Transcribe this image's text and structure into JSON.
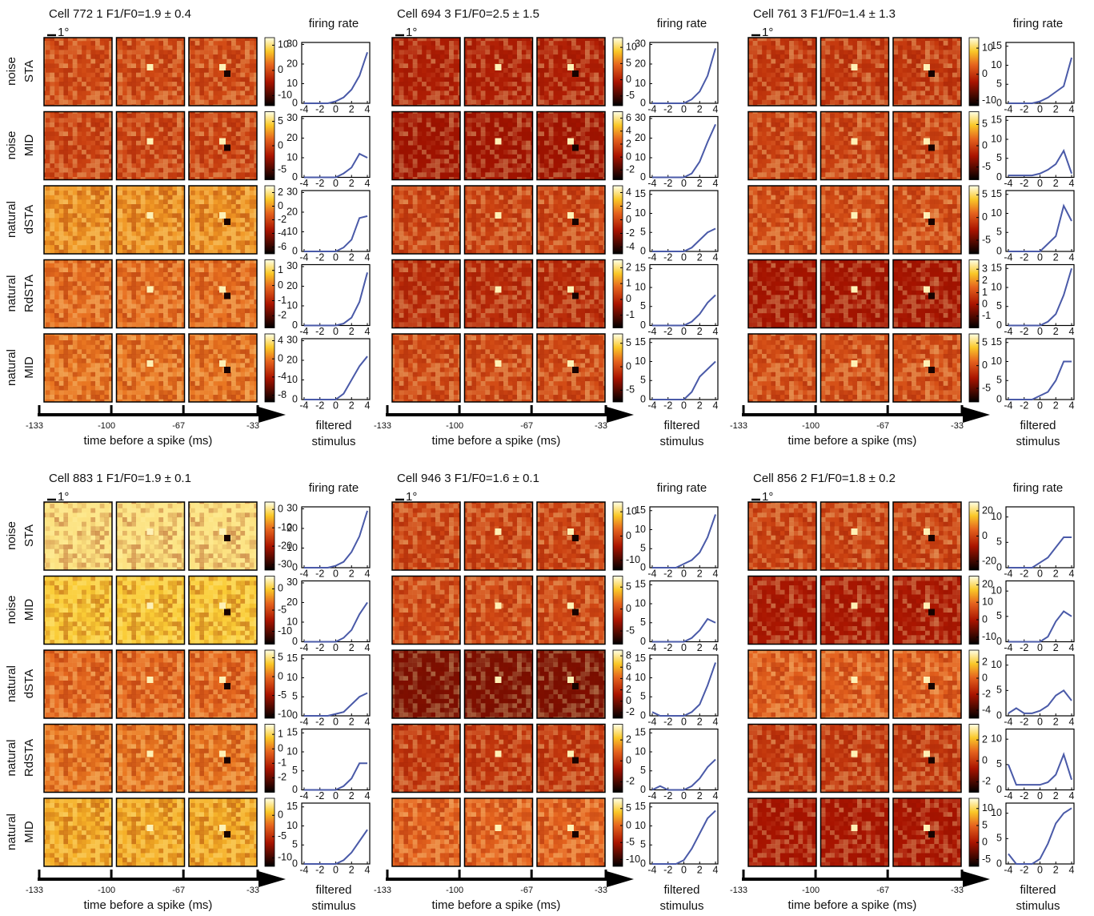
{
  "scale_label": "1°",
  "row_labels": [
    [
      "noise",
      "STA"
    ],
    [
      "noise",
      "MID"
    ],
    [
      "natural",
      "dSTA"
    ],
    [
      "natural",
      "RdSTA"
    ],
    [
      "natural",
      "MID"
    ]
  ],
  "rate_label": "firing rate",
  "stimulus_label": [
    "filtered",
    "stimulus"
  ],
  "time_axis": {
    "label": "time before a spike (ms)",
    "lim": [
      -133,
      -33
    ],
    "ticks": [
      -133,
      -100,
      -67,
      -33
    ]
  },
  "chart_data": [
    {
      "type": "line",
      "title": "Cell 772 1 F1/F0=1.9 ± 0.4",
      "color": "#4a5aa8",
      "x": [
        -4,
        -3,
        -2,
        -1,
        0,
        1,
        2,
        3,
        4
      ],
      "xlim": [
        -4.3,
        4.3
      ],
      "xticks": [
        -4,
        -2,
        0,
        2,
        4
      ],
      "rows": [
        {
          "ylim": [
            0,
            31
          ],
          "yticks": [
            0,
            10,
            20,
            30
          ],
          "values": [
            0,
            0,
            0,
            0,
            1,
            3,
            7,
            14,
            26
          ],
          "colorbar": {
            "lim": [
              -14,
              13
            ],
            "ticks": [
              10,
              0,
              -10
            ]
          }
        },
        {
          "ylim": [
            0,
            31
          ],
          "yticks": [
            0,
            10,
            20,
            30
          ],
          "values": [
            0,
            0,
            0,
            0,
            0,
            2,
            5,
            12,
            10
          ],
          "colorbar": {
            "lim": [
              -7,
              7
            ],
            "ticks": [
              5,
              0,
              -5
            ]
          }
        },
        {
          "ylim": [
            0,
            31
          ],
          "yticks": [
            0,
            10,
            20,
            30
          ],
          "values": [
            0,
            0,
            0,
            0,
            0,
            2,
            6,
            17,
            18
          ],
          "colorbar": {
            "lim": [
              -7,
              3
            ],
            "ticks": [
              2,
              0,
              -2,
              -4,
              -6
            ]
          }
        },
        {
          "ylim": [
            0,
            31
          ],
          "yticks": [
            0,
            10,
            20,
            30
          ],
          "values": [
            0,
            0,
            0,
            0,
            0,
            1,
            4,
            12,
            27
          ],
          "colorbar": {
            "lim": [
              -2.8,
              1.7
            ],
            "ticks": [
              1,
              0,
              -1,
              -2
            ]
          }
        },
        {
          "ylim": [
            0,
            31
          ],
          "yticks": [
            0,
            10,
            20,
            30
          ],
          "values": [
            0,
            0,
            0,
            0,
            0,
            3,
            10,
            17,
            22
          ],
          "colorbar": {
            "lim": [
              -9.5,
              5.5
            ],
            "ticks": [
              4,
              0,
              -4,
              -8
            ]
          }
        }
      ]
    },
    {
      "type": "line",
      "title": "Cell 694 3 F1/F0=2.5 ± 1.5",
      "color": "#4a5aa8",
      "x": [
        -4,
        -3,
        -2,
        -1,
        0,
        1,
        2,
        3,
        4
      ],
      "xlim": [
        -4.3,
        4.3
      ],
      "xticks": [
        -4,
        -2,
        0,
        2,
        4
      ],
      "rows": [
        {
          "ylim": [
            0,
            31
          ],
          "yticks": [
            0,
            10,
            20,
            30
          ],
          "values": [
            0,
            0,
            0,
            0,
            0,
            2,
            6,
            14,
            28
          ],
          "colorbar": {
            "lim": [
              -8,
              13
            ],
            "ticks": [
              10,
              5,
              0,
              -5
            ]
          }
        },
        {
          "ylim": [
            0,
            31
          ],
          "yticks": [
            0,
            10,
            20,
            30
          ],
          "values": [
            0,
            0,
            0,
            0,
            0,
            2,
            8,
            18,
            27
          ],
          "colorbar": {
            "lim": [
              -3.5,
              7
            ],
            "ticks": [
              6,
              4,
              2,
              0,
              -2
            ]
          }
        },
        {
          "ylim": [
            0,
            16
          ],
          "yticks": [
            0,
            5,
            10,
            15
          ],
          "values": [
            0,
            0,
            0,
            0,
            0,
            1,
            3,
            5,
            6
          ],
          "colorbar": {
            "lim": [
              -5,
              5
            ],
            "ticks": [
              4,
              2,
              0,
              -2,
              -4
            ]
          }
        },
        {
          "ylim": [
            0,
            16
          ],
          "yticks": [
            0,
            5,
            10,
            15
          ],
          "values": [
            0,
            0,
            0,
            0,
            0,
            1,
            3,
            6,
            8
          ],
          "colorbar": {
            "lim": [
              -1.8,
              2.5
            ],
            "ticks": [
              2,
              1,
              0,
              -1
            ]
          }
        },
        {
          "ylim": [
            0,
            16
          ],
          "yticks": [
            0,
            5,
            10,
            15
          ],
          "values": [
            0,
            0,
            0,
            0,
            0,
            2,
            6,
            8,
            10
          ],
          "colorbar": {
            "lim": [
              -7.5,
              7
            ],
            "ticks": [
              5,
              0,
              -5
            ]
          }
        }
      ]
    },
    {
      "type": "line",
      "title": "Cell 761 3 F1/F0=1.4 ± 1.3",
      "color": "#4a5aa8",
      "x": [
        -4,
        -3,
        -2,
        -1,
        0,
        1,
        2,
        3,
        4
      ],
      "xlim": [
        -4.3,
        4.3
      ],
      "xticks": [
        -4,
        -2,
        0,
        2,
        4
      ],
      "rows": [
        {
          "ylim": [
            0,
            16
          ],
          "yticks": [
            0,
            5,
            10,
            15
          ],
          "values": [
            0,
            0,
            0,
            0,
            0.5,
            1.5,
            3,
            4.5,
            12
          ],
          "colorbar": {
            "lim": [
              -12,
              14
            ],
            "ticks": [
              10,
              0,
              -10
            ]
          }
        },
        {
          "ylim": [
            0,
            16
          ],
          "yticks": [
            0,
            5,
            10,
            15
          ],
          "values": [
            0.5,
            0.5,
            0.5,
            0.5,
            1,
            2,
            3.5,
            7,
            1
          ],
          "colorbar": {
            "lim": [
              -8,
              8
            ],
            "ticks": [
              5,
              0,
              -5
            ]
          }
        },
        {
          "ylim": [
            0,
            16
          ],
          "yticks": [
            0,
            5,
            10,
            15
          ],
          "values": [
            0,
            0,
            0,
            0,
            0,
            2,
            4,
            12,
            8
          ],
          "colorbar": {
            "lim": [
              -8,
              7
            ],
            "ticks": [
              5,
              0,
              -5
            ]
          }
        },
        {
          "ylim": [
            0,
            16
          ],
          "yticks": [
            0,
            5,
            10,
            15
          ],
          "values": [
            0,
            0,
            0,
            0,
            0,
            1,
            3,
            8,
            15
          ],
          "colorbar": {
            "lim": [
              -2,
              3.8
            ],
            "ticks": [
              3,
              2,
              1,
              0,
              -1
            ]
          }
        },
        {
          "ylim": [
            0,
            16
          ],
          "yticks": [
            0,
            5,
            10,
            15
          ],
          "values": [
            0,
            0,
            0,
            0,
            1,
            2,
            5,
            10,
            10
          ],
          "colorbar": {
            "lim": [
              -8,
              7
            ],
            "ticks": [
              5,
              0,
              -5
            ]
          }
        }
      ]
    },
    {
      "type": "line",
      "title": "Cell 883 1 F1/F0=1.9 ± 0.1",
      "color": "#4a5aa8",
      "x": [
        -4,
        -3,
        -2,
        -1,
        0,
        1,
        2,
        3,
        4
      ],
      "xlim": [
        -4.3,
        4.3
      ],
      "xticks": [
        -4,
        -2,
        0,
        2,
        4
      ],
      "rows": [
        {
          "ylim": [
            0,
            31
          ],
          "yticks": [
            0,
            10,
            20,
            30
          ],
          "values": [
            0,
            0,
            0,
            0,
            1,
            3,
            8,
            16,
            29
          ],
          "colorbar": {
            "lim": [
              -33,
              4
            ],
            "ticks": [
              0,
              -10,
              -20,
              -30
            ]
          }
        },
        {
          "ylim": [
            0,
            31
          ],
          "yticks": [
            0,
            10,
            20,
            30
          ],
          "values": [
            0,
            0,
            0,
            0,
            0,
            2,
            6,
            14,
            20
          ],
          "colorbar": {
            "lim": [
              -13,
              3
            ],
            "ticks": [
              0,
              -5,
              -10
            ]
          }
        },
        {
          "ylim": [
            0,
            16
          ],
          "yticks": [
            0,
            5,
            10,
            15
          ],
          "values": [
            0,
            0,
            0,
            0,
            0.5,
            1,
            3,
            5,
            6
          ],
          "colorbar": {
            "lim": [
              -11,
              7
            ],
            "ticks": [
              5,
              0,
              -5,
              -10
            ]
          }
        },
        {
          "ylim": [
            0,
            16
          ],
          "yticks": [
            0,
            5,
            10,
            15
          ],
          "values": [
            0,
            0,
            0,
            0,
            0,
            1,
            3,
            7,
            7
          ],
          "colorbar": {
            "lim": [
              -3,
              1.7
            ],
            "ticks": [
              1,
              0,
              -1,
              -2
            ]
          }
        },
        {
          "ylim": [
            0,
            16
          ],
          "yticks": [
            0,
            5,
            10,
            15
          ],
          "values": [
            0,
            0,
            0,
            0,
            0,
            1,
            3,
            6,
            9
          ],
          "colorbar": {
            "lim": [
              -12,
              4
            ],
            "ticks": [
              0,
              -5,
              -10
            ]
          }
        }
      ]
    },
    {
      "type": "line",
      "title": "Cell 946 3 F1/F0=1.6 ± 0.1",
      "color": "#4a5aa8",
      "x": [
        -4,
        -3,
        -2,
        -1,
        0,
        1,
        2,
        3,
        4
      ],
      "xlim": [
        -4.3,
        4.3
      ],
      "xticks": [
        -4,
        -2,
        0,
        2,
        4
      ],
      "rows": [
        {
          "ylim": [
            0,
            16
          ],
          "yticks": [
            0,
            5,
            10,
            15
          ],
          "values": [
            0,
            0,
            0,
            0,
            1,
            2,
            4,
            8,
            14
          ],
          "colorbar": {
            "lim": [
              -14,
              14
            ],
            "ticks": [
              10,
              0,
              -10
            ]
          }
        },
        {
          "ylim": [
            0,
            16
          ],
          "yticks": [
            0,
            5,
            10,
            15
          ],
          "values": [
            0,
            0,
            0,
            0,
            0,
            1,
            3,
            6,
            5
          ],
          "colorbar": {
            "lim": [
              -8,
              7.5
            ],
            "ticks": [
              5,
              0,
              -5
            ]
          }
        },
        {
          "ylim": [
            0,
            16
          ],
          "yticks": [
            0,
            5,
            10,
            15
          ],
          "values": [
            1,
            0,
            0,
            0,
            0,
            1,
            3,
            8,
            14
          ],
          "colorbar": {
            "lim": [
              -3,
              9
            ],
            "ticks": [
              8,
              6,
              4,
              2,
              0,
              -2
            ]
          }
        },
        {
          "ylim": [
            0,
            16
          ],
          "yticks": [
            0,
            5,
            10,
            15
          ],
          "values": [
            0,
            1,
            0,
            0,
            0,
            1,
            3,
            6,
            8
          ],
          "colorbar": {
            "lim": [
              -3,
              3.5
            ],
            "ticks": [
              2,
              0,
              -2
            ]
          }
        },
        {
          "ylim": [
            0,
            16
          ],
          "yticks": [
            0,
            5,
            10,
            15
          ],
          "values": [
            0,
            0,
            0,
            0,
            1,
            4,
            8,
            12,
            14
          ],
          "colorbar": {
            "lim": [
              -12,
              8
            ],
            "ticks": [
              5,
              0,
              -5,
              -10
            ]
          }
        }
      ]
    },
    {
      "type": "line",
      "title": "Cell 856 2 F1/F0=1.8 ± 0.2",
      "color": "#4a5aa8",
      "x": [
        -4,
        -3,
        -2,
        -1,
        0,
        1,
        2,
        3,
        4
      ],
      "xlim": [
        -4.3,
        4.3
      ],
      "xticks": [
        -4,
        -2,
        0,
        2,
        4
      ],
      "rows": [
        {
          "ylim": [
            0,
            12
          ],
          "yticks": [
            0,
            5,
            10
          ],
          "values": [
            0,
            0,
            0,
            0,
            1,
            2,
            4,
            6,
            6
          ],
          "colorbar": {
            "lim": [
              -27,
              27
            ],
            "ticks": [
              20,
              0,
              -20
            ]
          }
        },
        {
          "ylim": [
            0,
            12
          ],
          "yticks": [
            0,
            5,
            10
          ],
          "values": [
            0,
            0,
            0,
            0,
            0,
            1,
            4,
            6,
            5
          ],
          "colorbar": {
            "lim": [
              -14,
              25
            ],
            "ticks": [
              20,
              10,
              0,
              -10
            ]
          }
        },
        {
          "ylim": [
            0,
            12
          ],
          "yticks": [
            0,
            5,
            10
          ],
          "values": [
            0.5,
            1.5,
            0.5,
            0.5,
            1,
            2,
            4,
            5,
            3
          ],
          "colorbar": {
            "lim": [
              -5,
              3.5
            ],
            "ticks": [
              2,
              0,
              -2,
              -4
            ]
          }
        },
        {
          "ylim": [
            0,
            12
          ],
          "yticks": [
            0,
            5,
            10
          ],
          "values": [
            5,
            1,
            1,
            1,
            1,
            1.5,
            3,
            7,
            2
          ],
          "colorbar": {
            "lim": [
              -3,
              3.5
            ],
            "ticks": [
              2,
              0,
              -2
            ]
          }
        },
        {
          "ylim": [
            0,
            12
          ],
          "yticks": [
            0,
            5,
            10
          ],
          "values": [
            2,
            0,
            0,
            0,
            1,
            4,
            8,
            10,
            11
          ],
          "colorbar": {
            "lim": [
              -7,
              13
            ],
            "ticks": [
              10,
              5,
              0,
              -5
            ]
          }
        }
      ]
    }
  ]
}
